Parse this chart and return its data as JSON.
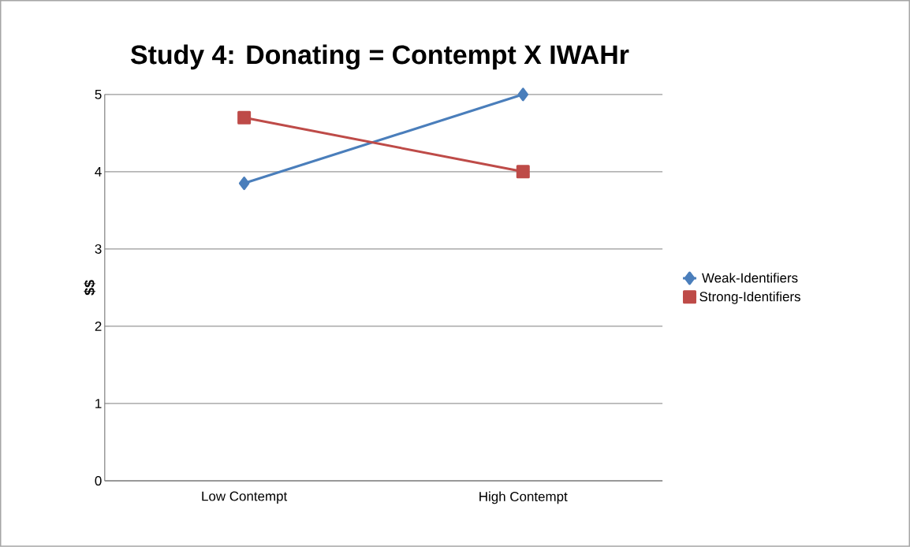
{
  "chart_data": {
    "type": "line",
    "title": "Study 4: Donating = Contempt X IWAHr",
    "ylabel": "$$",
    "categories": [
      "Low Contempt",
      "High Contempt"
    ],
    "series": [
      {
        "name": "Weak-Identifiers",
        "color": "#4a7ebb",
        "marker": "diamond",
        "values": [
          3.85,
          5.0
        ]
      },
      {
        "name": "Strong-Identifiers",
        "color": "#be4b48",
        "marker": "square",
        "values": [
          4.7,
          4.0
        ]
      }
    ],
    "ylim": [
      0,
      5
    ],
    "yticks": [
      0,
      1,
      2,
      3,
      4,
      5
    ],
    "grid": "y",
    "legend": "right",
    "line_style": "solid"
  }
}
